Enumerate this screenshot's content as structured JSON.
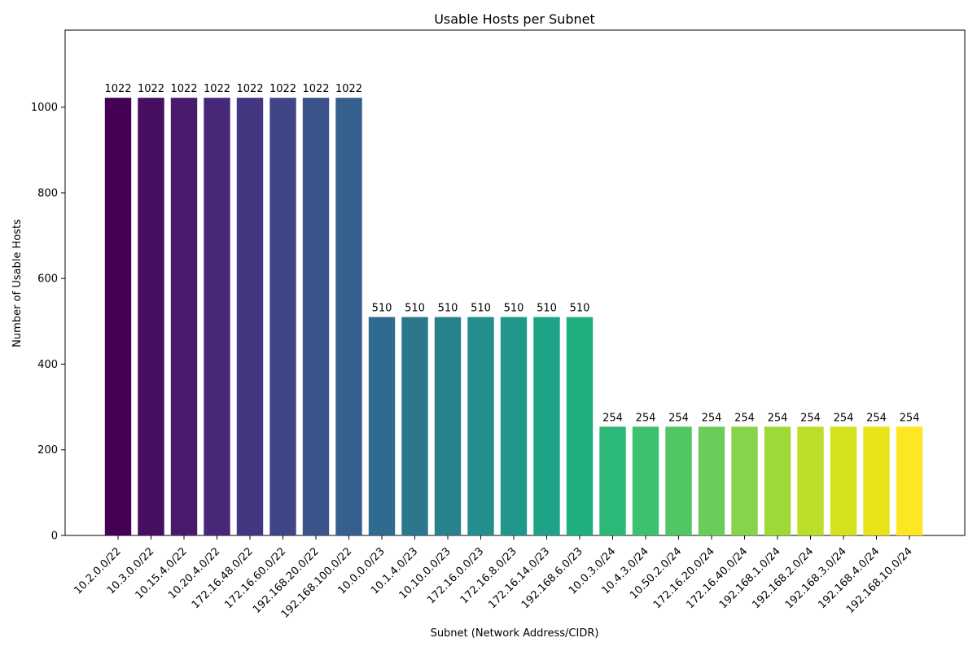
{
  "chart_data": {
    "type": "bar",
    "title": "Usable Hosts per Subnet",
    "xlabel": "Subnet (Network Address/CIDR)",
    "ylabel": "Number of Usable Hosts",
    "ylim": [
      0,
      1180
    ],
    "yticks": [
      0,
      200,
      400,
      600,
      800,
      1000
    ],
    "grid": false,
    "legend": "none",
    "colormap": "viridis",
    "categories": [
      "10.2.0.0/22",
      "10.3.0.0/22",
      "10.15.4.0/22",
      "10.20.4.0/22",
      "172.16.48.0/22",
      "172.16.60.0/22",
      "192.168.20.0/22",
      "192.168.100.0/22",
      "10.0.0.0/23",
      "10.1.4.0/23",
      "10.10.0.0/23",
      "172.16.0.0/23",
      "172.16.8.0/23",
      "172.16.14.0/23",
      "192.168.6.0/23",
      "10.0.3.0/24",
      "10.4.3.0/24",
      "10.50.2.0/24",
      "172.16.20.0/24",
      "172.16.40.0/24",
      "192.168.1.0/24",
      "192.168.2.0/24",
      "192.168.3.0/24",
      "192.168.4.0/24",
      "192.168.10.0/24"
    ],
    "values": [
      1022,
      1022,
      1022,
      1022,
      1022,
      1022,
      1022,
      1022,
      510,
      510,
      510,
      510,
      510,
      510,
      510,
      254,
      254,
      254,
      254,
      254,
      254,
      254,
      254,
      254,
      254
    ],
    "colors": [
      "#440154",
      "#470e61",
      "#481b6d",
      "#472878",
      "#433680",
      "#3f4587",
      "#3b528b",
      "#35608d",
      "#2f6b8e",
      "#2c778e",
      "#28828e",
      "#248d8d",
      "#21978b",
      "#1fa387",
      "#21ae81",
      "#2cb879",
      "#3cc16f",
      "#52c664",
      "#6bcd59",
      "#85d44a",
      "#9fd938",
      "#bbde2a",
      "#d3e21d",
      "#e9e419",
      "#fde725"
    ]
  }
}
